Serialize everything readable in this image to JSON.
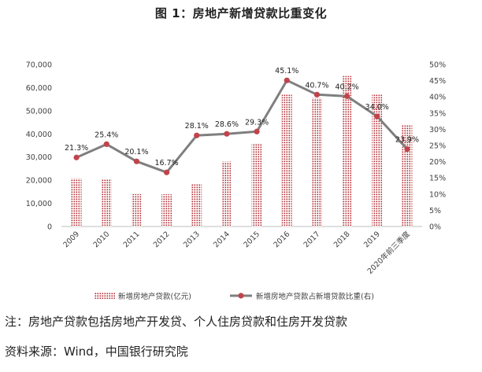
{
  "figure_title": "图 1：房地产新增贷款比重变化",
  "notes": {
    "note": "注：房地产贷款包括房地产开发贷、个人住房贷款和住房开发贷款",
    "source": "资料来源：Wind，中国银行研究院"
  },
  "colors": {
    "bar": "#b02a30",
    "line": "#7f7f7f",
    "marker": "#c0444b",
    "axis_text": "#404040"
  },
  "chart_data": {
    "type": "bar+line",
    "categories": [
      "2009",
      "2010",
      "2011",
      "2012",
      "2013",
      "2014",
      "2015",
      "2016",
      "2017",
      "2018",
      "2019",
      "2020年前三季度"
    ],
    "series": [
      {
        "name": "新增房地产贷款(亿元)",
        "type": "bar",
        "axis": "left",
        "values": [
          20800,
          20300,
          14000,
          13900,
          18500,
          28000,
          36000,
          57000,
          55500,
          65000,
          57000,
          44000
        ]
      },
      {
        "name": "新增房地产贷款占新增贷款比重(右)",
        "type": "line",
        "axis": "right",
        "values": [
          21.3,
          25.4,
          20.1,
          16.7,
          28.1,
          28.6,
          29.3,
          45.1,
          40.7,
          40.2,
          34.0,
          23.9
        ],
        "labels": [
          "21.3%",
          "25.4%",
          "20.1%",
          "16.7%",
          "28.1%",
          "28.6%",
          "29.3%",
          "45.1%",
          "40.7%",
          "40.2%",
          "34.0%",
          "23.9%"
        ]
      }
    ],
    "left_axis": {
      "ylim": [
        0,
        70000
      ],
      "ticks": [
        "0",
        "10,000",
        "20,000",
        "30,000",
        "40,000",
        "50,000",
        "60,000",
        "70,000"
      ]
    },
    "right_axis": {
      "ylim": [
        0,
        50
      ],
      "ticks": [
        "0%",
        "5%",
        "10%",
        "15%",
        "20%",
        "25%",
        "30%",
        "35%",
        "40%",
        "45%",
        "50%"
      ]
    },
    "grid": false,
    "legend": "bottom"
  }
}
